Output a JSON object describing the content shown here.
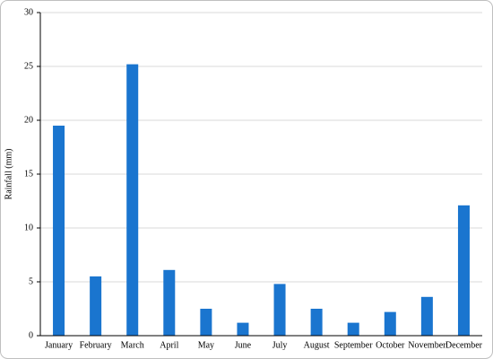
{
  "chart_data": {
    "type": "bar",
    "y_label": "Rainfall (mm)",
    "categories": [
      "January",
      "February",
      "March",
      "April",
      "May",
      "June",
      "July",
      "August",
      "September",
      "October",
      "November",
      "December"
    ],
    "values": [
      19.5,
      5.5,
      25.2,
      6.1,
      2.5,
      1.2,
      4.8,
      2.5,
      1.2,
      2.2,
      3.6,
      12.1
    ],
    "color": "#1a75cf",
    "ylim": [
      0,
      30
    ],
    "yticks": [
      0,
      5,
      10,
      15,
      20,
      25,
      30
    ],
    "grid": true
  }
}
